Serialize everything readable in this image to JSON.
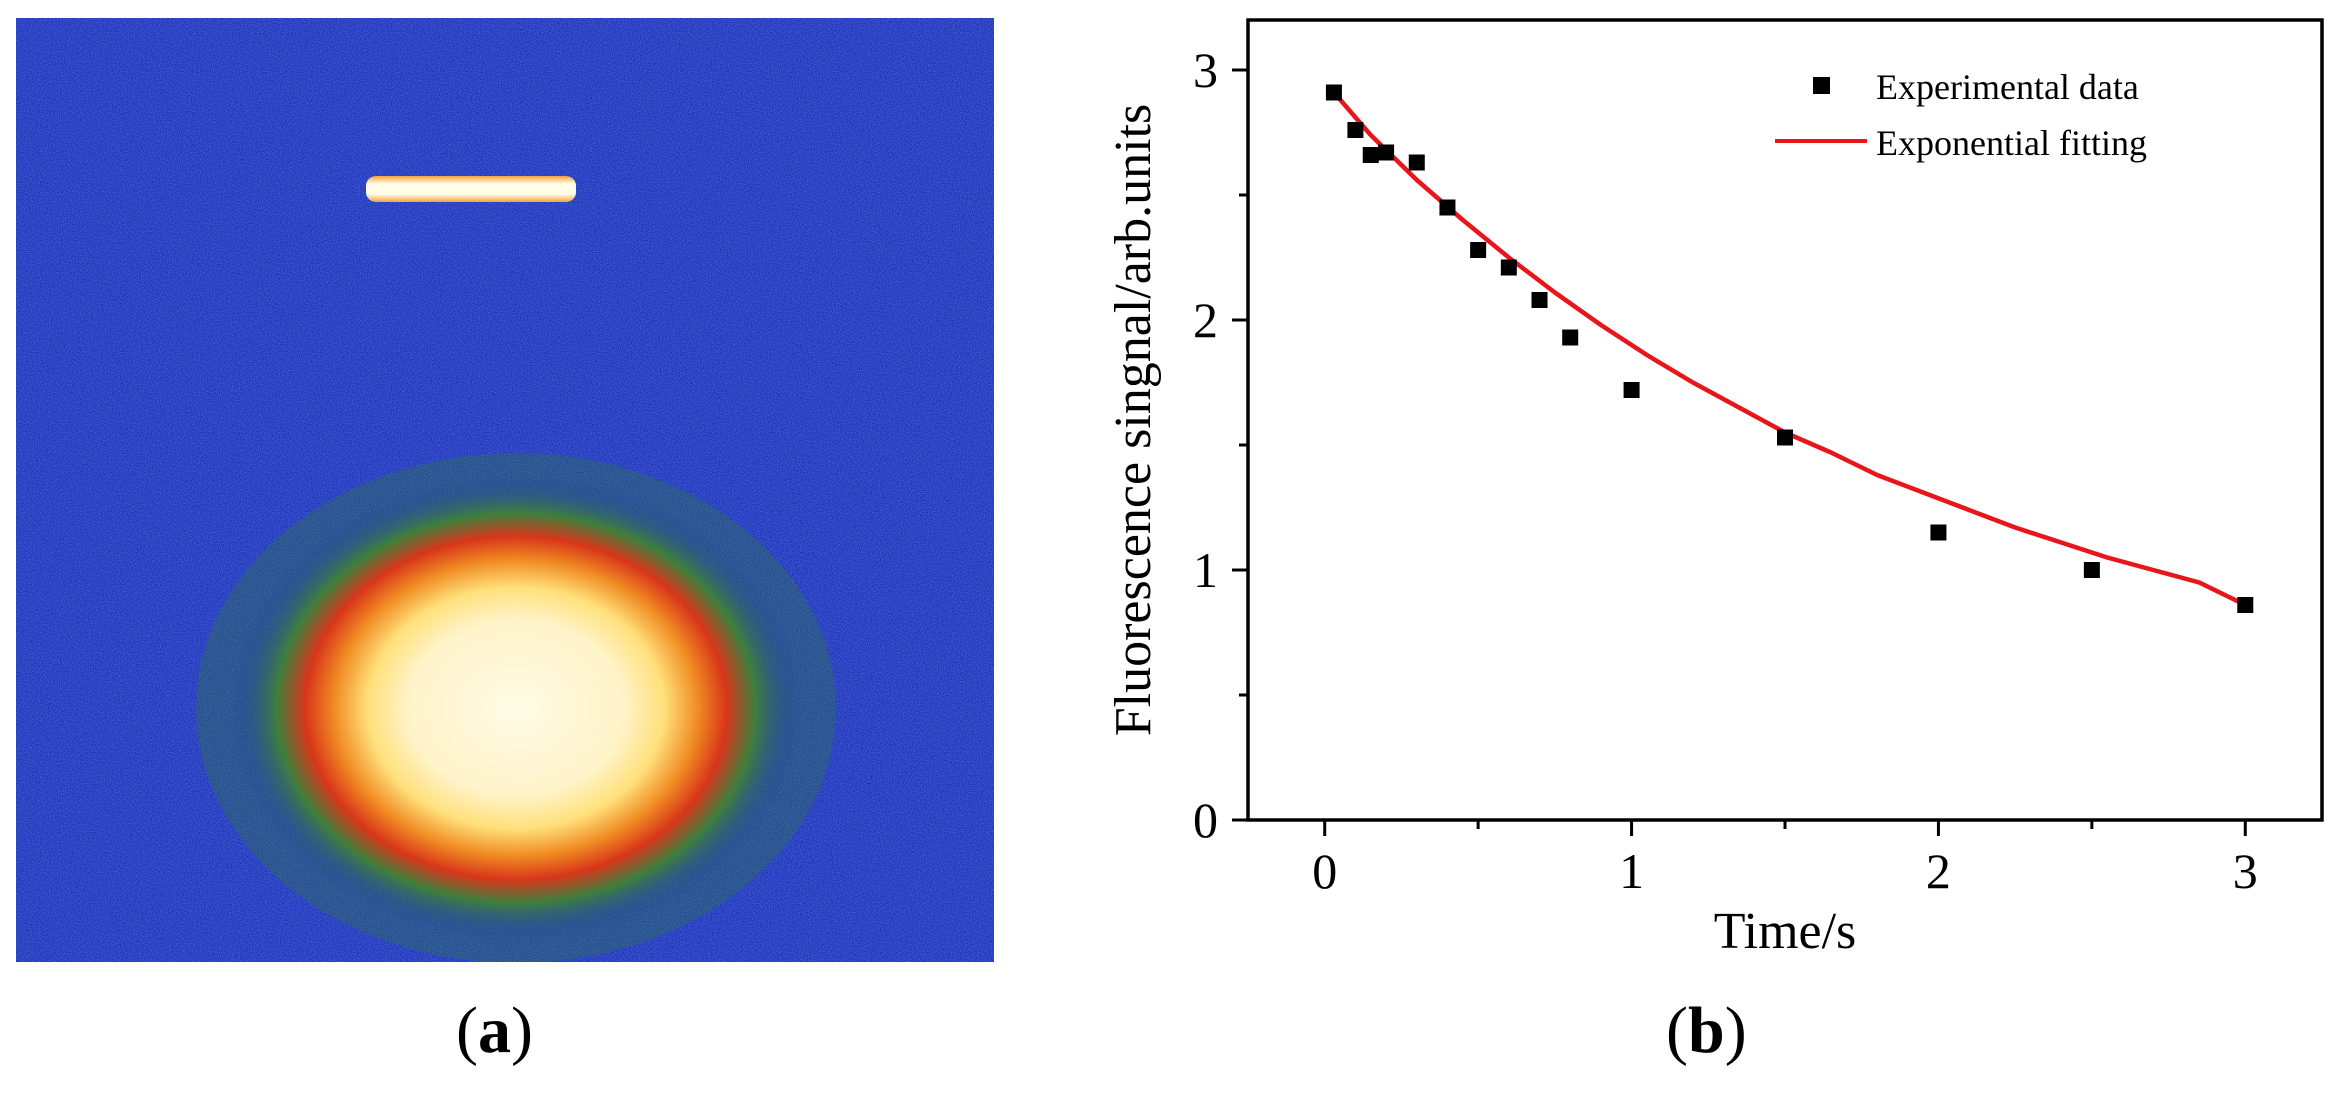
{
  "panels": {
    "a": {
      "label_open": "(",
      "label_letter": "a",
      "label_close": ")"
    },
    "b": {
      "label_open": "(",
      "label_letter": "b",
      "label_close": ")"
    }
  },
  "image_a": {
    "content": "false-color fluorescence image",
    "colors": {
      "background": "#1b2fb8",
      "halo": "#2e7a3a",
      "ring": "#e23a10",
      "core": "#fff7d6",
      "bar": "#fffde8"
    }
  },
  "chart_data": {
    "type": "scatter",
    "xlabel": "Time/s",
    "ylabel": "Fluorescence singnal/arb.units",
    "xlim": [
      -0.25,
      3.25
    ],
    "ylim": [
      0,
      3.2
    ],
    "xticks": [
      0,
      1,
      2,
      3
    ],
    "yticks": [
      0,
      1,
      2,
      3
    ],
    "grid": false,
    "legend_position": "top-right",
    "series": [
      {
        "name": "Experimental data",
        "kind": "points",
        "marker": "square",
        "color": "#000000",
        "x": [
          0.03,
          0.1,
          0.15,
          0.2,
          0.3,
          0.4,
          0.5,
          0.6,
          0.7,
          0.8,
          1.0,
          1.5,
          2.0,
          2.5,
          3.0
        ],
        "y": [
          2.91,
          2.76,
          2.66,
          2.67,
          2.63,
          2.45,
          2.28,
          2.21,
          2.08,
          1.93,
          1.72,
          1.53,
          1.15,
          1.0,
          0.86
        ]
      },
      {
        "name": "Exponential fitting",
        "kind": "line",
        "color": "#e8151b",
        "x": [
          0.03,
          0.15,
          0.3,
          0.45,
          0.6,
          0.75,
          0.9,
          1.05,
          1.2,
          1.35,
          1.5,
          1.65,
          1.8,
          1.95,
          2.1,
          2.25,
          2.4,
          2.55,
          2.7,
          2.85,
          3.0
        ],
        "y": [
          2.91,
          2.74,
          2.56,
          2.4,
          2.25,
          2.11,
          1.98,
          1.86,
          1.75,
          1.65,
          1.55,
          1.47,
          1.38,
          1.31,
          1.24,
          1.17,
          1.11,
          1.05,
          1.0,
          0.95,
          0.86
        ]
      }
    ]
  }
}
